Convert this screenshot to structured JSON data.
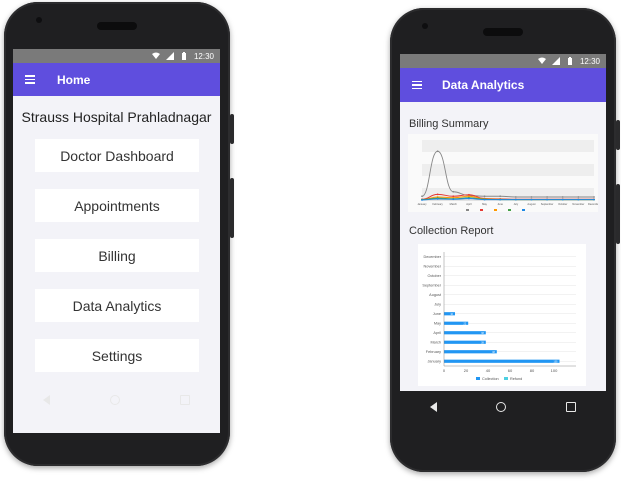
{
  "status": {
    "time": "12:30"
  },
  "left_screen": {
    "title": "Home",
    "hospital_name": "Strauss Hospital Prahladnagar",
    "menu": [
      {
        "label": "Doctor Dashboard"
      },
      {
        "label": "Appointments"
      },
      {
        "label": "Billing"
      },
      {
        "label": "Data Analytics"
      },
      {
        "label": "Settings"
      }
    ]
  },
  "right_screen": {
    "title": "Data Analytics",
    "billing_summary_title": "Billing Summary",
    "collection_report_title": "Collection Report"
  },
  "colors": {
    "appbar": "#5f4ede",
    "collection": "#2196f3",
    "refund": "#4dd0e1"
  },
  "chart_data": [
    {
      "type": "line",
      "title": "Billing Summary",
      "x": [
        "January",
        "February",
        "March",
        "April",
        "May",
        "June",
        "July",
        "August",
        "September",
        "October",
        "November",
        "December"
      ],
      "series": [
        {
          "name": "",
          "values": [
            10,
            130,
            22,
            12,
            10,
            10,
            8,
            8,
            8,
            8,
            8,
            8
          ],
          "color": "#888888"
        },
        {
          "name": "",
          "values": [
            2,
            15,
            10,
            14,
            4,
            3,
            2,
            2,
            2,
            2,
            2,
            2
          ],
          "color": "#e53935"
        },
        {
          "name": "",
          "values": [
            1,
            8,
            6,
            10,
            3,
            2,
            1,
            1,
            1,
            1,
            1,
            1
          ],
          "color": "#ff9800"
        },
        {
          "name": "",
          "values": [
            1,
            5,
            3,
            6,
            2,
            1,
            1,
            1,
            1,
            1,
            1,
            1
          ],
          "color": "#43a047"
        },
        {
          "name": "",
          "values": [
            0,
            3,
            2,
            4,
            1,
            1,
            1,
            1,
            1,
            1,
            1,
            1
          ],
          "color": "#1e88e5"
        }
      ],
      "ylim": [
        0,
        160
      ],
      "grid": true,
      "legend": "bottom"
    },
    {
      "type": "bar",
      "orientation": "horizontal",
      "title": "Collection Report",
      "categories": [
        "December",
        "November",
        "October",
        "September",
        "August",
        "July",
        "June",
        "May",
        "April",
        "March",
        "February",
        "January"
      ],
      "series": [
        {
          "name": "Collection",
          "values": [
            0,
            0,
            0,
            0,
            0,
            0,
            10,
            22,
            38,
            38,
            48,
            105
          ],
          "color": "#2196f3"
        },
        {
          "name": "Refund",
          "values": [
            0,
            0,
            0,
            0,
            0,
            0,
            0,
            0,
            0,
            0,
            0,
            0
          ],
          "color": "#4dd0e1"
        }
      ],
      "xticks": [
        0,
        20,
        40,
        60,
        80,
        100
      ],
      "xlim": [
        0,
        120
      ],
      "grid": true,
      "legend": "bottom"
    }
  ]
}
